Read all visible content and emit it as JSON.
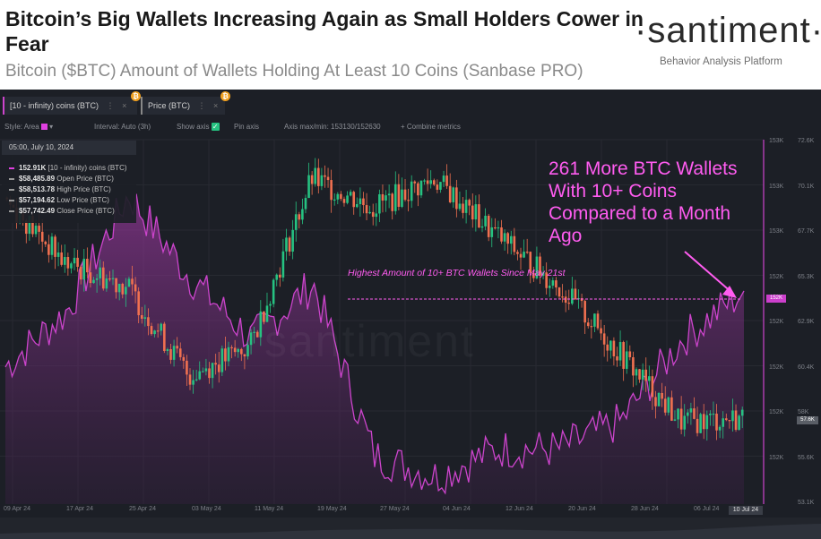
{
  "header": {
    "title": "Bitcoin’s Big Wallets Increasing Again as Small Holders Cower in Fear",
    "subtitle": "Bitcoin ($BTC) Amount of Wallets Holding At Least 10 Coins (Sanbase PRO)",
    "logo": "·santiment·",
    "tagline": "Behavior Analysis Platform"
  },
  "tabs": [
    {
      "label": "[10 - infinity) coins (BTC)",
      "dots": "⋮",
      "close": "×",
      "coin": "₿"
    },
    {
      "label": "Price (BTC)",
      "dots": "⋮",
      "close": "×",
      "coin": "₿"
    }
  ],
  "toolbar": {
    "style": "Style: Area",
    "interval": "Interval: Auto (3h)",
    "show_axis": "Show axis",
    "check": "✓",
    "pin_axis": "Pin axis",
    "axis_max_min": "Axis max/min: 153130/152630",
    "combine": "+  Combine metrics"
  },
  "legend": {
    "timestamp": "05:00, July 10, 2024",
    "rows": [
      {
        "value": "152.91K",
        "label": "[10 - infinity) coins (BTC)",
        "color": "#e040e0"
      },
      {
        "value": "$58,485.89",
        "label": "Open Price (BTC)",
        "color": "#9a9a9a"
      },
      {
        "value": "$58,513.78",
        "label": "High Price (BTC)",
        "color": "#9a9a9a"
      },
      {
        "value": "$57,194.62",
        "label": "Low Price (BTC)",
        "color": "#9a9a9a"
      },
      {
        "value": "$57,742.49",
        "label": "Close Price (BTC)",
        "color": "#9a9a9a"
      }
    ]
  },
  "watermark": "santiment",
  "annotations": {
    "main": "261 More BTC Wallets With 10+ Coins Compared to a Month Ago",
    "line": "Highest Amount of 10+ BTC Wallets Since May 21st"
  },
  "badges": {
    "current": "152K",
    "price": "57.6K",
    "date": "10 Jul 24"
  },
  "chart_data": {
    "type": "area",
    "x": [
      "09 Apr 24",
      "17 Apr 24",
      "25 Apr 24",
      "03 May 24",
      "11 May 24",
      "19 May 24",
      "27 May 24",
      "04 Jun 24",
      "12 Jun 24",
      "20 Jun 24",
      "28 Jun 24",
      "06 Jul 24",
      "10 Jul 24"
    ],
    "series": [
      {
        "name": "[10 - infinity) coins (BTC)",
        "axis": "left",
        "color": "#cc44cc",
        "values": [
          152800,
          152880,
          153050,
          152930,
          152840,
          152920,
          152670,
          152640,
          152680,
          152680,
          152720,
          152840,
          152910
        ]
      },
      {
        "name": "Price (BTC)",
        "axis": "right",
        "color_up": "#26c281",
        "color_down": "#f07050",
        "values": [
          69500,
          66000,
          64800,
          60000,
          61500,
          70500,
          69000,
          70500,
          67500,
          64800,
          61200,
          57500,
          57700
        ]
      }
    ],
    "left_axis": {
      "ticks": [
        "153K",
        "153K",
        "153K",
        "152K",
        "152K",
        "152K",
        "152K",
        "152K"
      ]
    },
    "right_axis": {
      "ticks": [
        "72.6K",
        "70.1K",
        "67.7K",
        "65.3K",
        "62.9K",
        "60.4K",
        "58K",
        "55.6K",
        "53.1K"
      ]
    },
    "xlabel": "",
    "ylabel": "",
    "grid": true,
    "legend": "top-left"
  }
}
